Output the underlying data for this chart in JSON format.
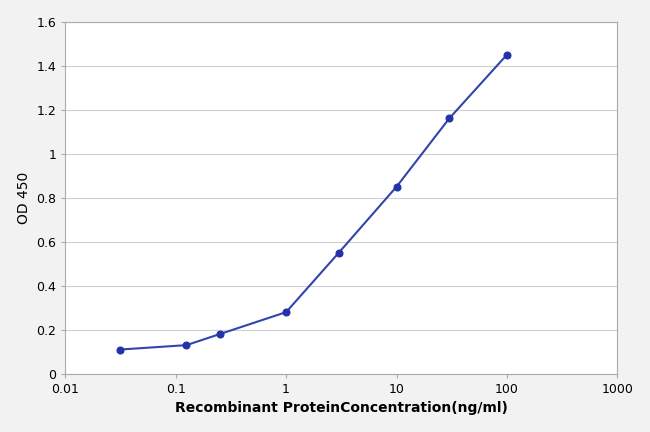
{
  "x": [
    0.0313,
    0.125,
    0.25,
    1.0,
    3.0,
    10.0,
    30.0,
    100.0
  ],
  "y": [
    0.11,
    0.13,
    0.18,
    0.28,
    0.55,
    0.85,
    1.16,
    1.45
  ],
  "line_color": "#3344aa",
  "marker_color": "#2233aa",
  "marker_style": "o",
  "marker_size": 5,
  "marker_edge_width": 0.8,
  "line_width": 1.5,
  "xlabel": "Recombinant ProteinConcentration(ng/ml)",
  "ylabel": "OD 450",
  "xlim": [
    0.01,
    1000
  ],
  "ylim": [
    0,
    1.6
  ],
  "yticks": [
    0,
    0.2,
    0.4,
    0.6,
    0.8,
    1.0,
    1.2,
    1.4,
    1.6
  ],
  "ytick_labels": [
    "0",
    "0.2",
    "0.4",
    "0.6",
    "0.8",
    "1",
    "1.2",
    "1.4",
    "1.6"
  ],
  "xtick_positions": [
    0.01,
    0.1,
    1,
    10,
    100,
    1000
  ],
  "xtick_labels": [
    "0.01",
    "0.1",
    "1",
    "10",
    "100",
    "1000"
  ],
  "fig_bg_color": "#f2f2f2",
  "plot_bg_color": "#ffffff",
  "grid_color": "#d0d0d0",
  "spine_color": "#aaaaaa",
  "xlabel_fontsize": 10,
  "ylabel_fontsize": 10,
  "tick_fontsize": 9,
  "xlabel_fontweight": "bold",
  "ylabel_fontweight": "normal"
}
